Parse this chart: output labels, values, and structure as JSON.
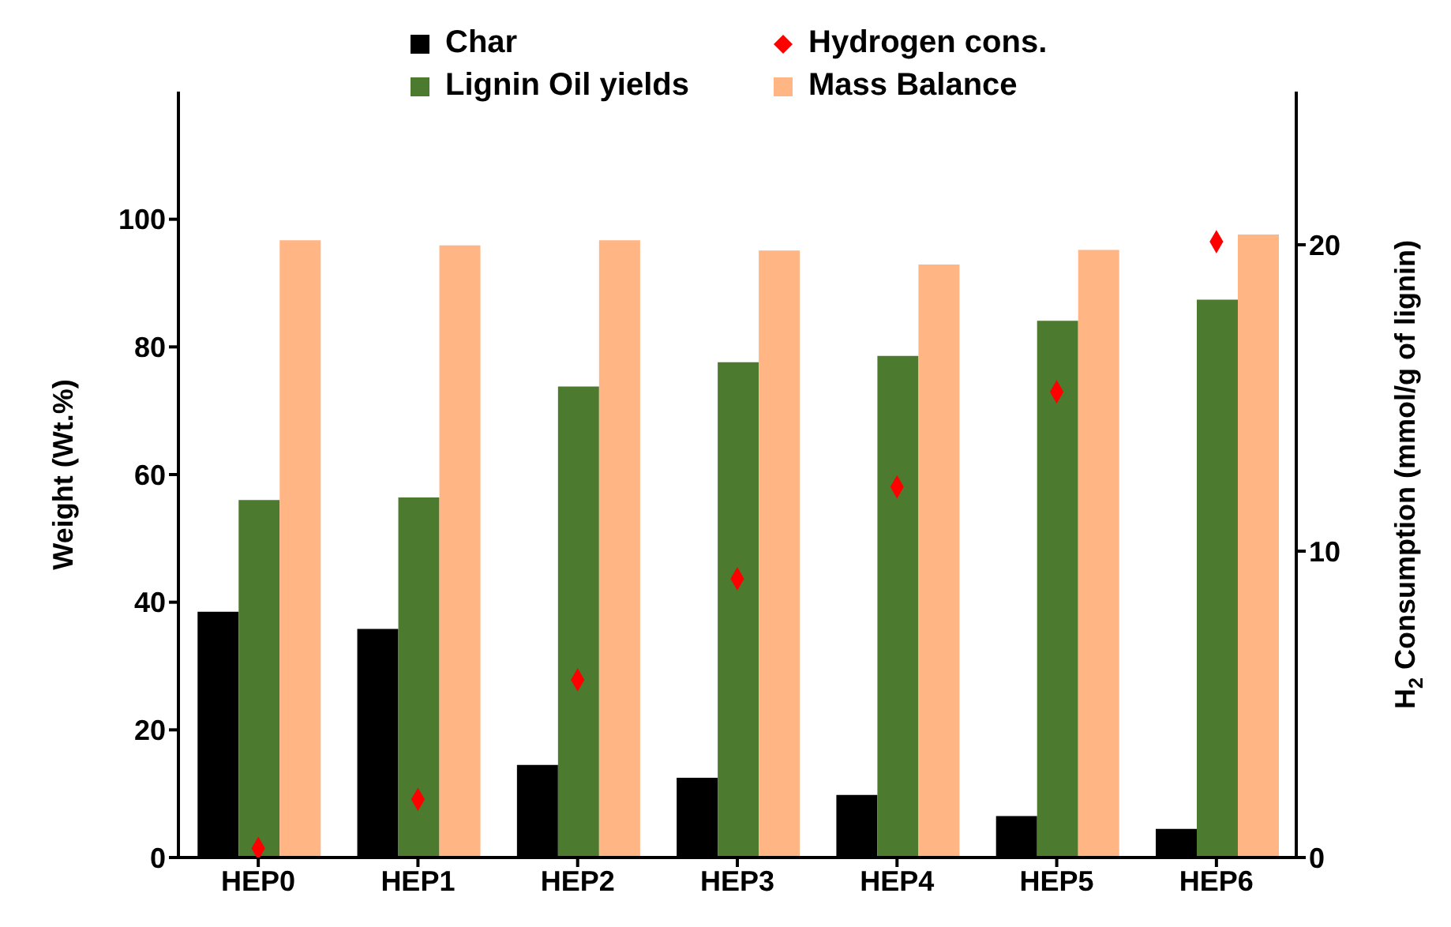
{
  "chart_data": {
    "type": "bar",
    "categories": [
      "HEP0",
      "HEP1",
      "HEP2",
      "HEP3",
      "HEP4",
      "HEP5",
      "HEP6"
    ],
    "series": [
      {
        "name": "Char",
        "color": "#000000",
        "values": [
          38.5,
          35.8,
          14.5,
          12.5,
          9.8,
          6.5,
          4.5
        ]
      },
      {
        "name": "Lignin Oil yields",
        "color": "#4c7a2f",
        "values": [
          56.0,
          56.4,
          73.8,
          77.6,
          78.6,
          84.1,
          87.4
        ]
      },
      {
        "name": "Mass Balance",
        "color": "#ffb584",
        "values": [
          96.7,
          95.9,
          96.7,
          95.1,
          92.9,
          95.2,
          97.6
        ]
      },
      {
        "name": "Hydrogen cons.",
        "type": "scatter",
        "axis": "y2",
        "color": "#ff0000",
        "marker": "diamond",
        "values": [
          0.3,
          1.9,
          5.8,
          9.1,
          12.1,
          15.2,
          20.1
        ]
      }
    ],
    "ylabel": "Weight (Wt.%)",
    "y2label": "H$_{2}$ Consumption (mmol/g of lignin)",
    "ylim": [
      0,
      120
    ],
    "yticks": [
      0,
      20,
      40,
      60,
      80,
      100
    ],
    "y2lim": [
      0,
      25
    ],
    "y2ticks": [
      0,
      10,
      20
    ],
    "grid": false,
    "legend": "top"
  }
}
